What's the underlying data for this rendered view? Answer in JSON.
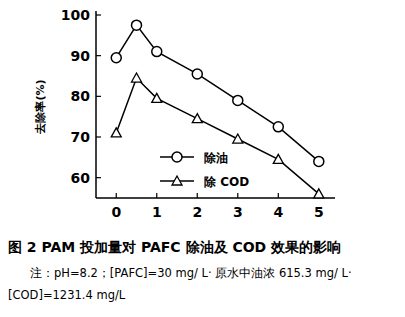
{
  "chart_data": {
    "type": "line",
    "title": "图 2  PAM 投加量对 PAFC 除油及 COD 效果的影响",
    "annotations": [
      "注：pH=8.2；[PAFC]=30 mg/ L· 原水中油浓 615.3 mg/ L·",
      "[COD]=1231.4 mg/L"
    ],
    "y_label": "去除率(%)",
    "x": [
      0,
      0.5,
      1,
      2,
      3,
      4,
      5
    ],
    "xlim": [
      -0.5,
      5.4
    ],
    "xticks": [
      0,
      1,
      2,
      3,
      4,
      5
    ],
    "ylim": [
      55,
      100
    ],
    "yticks": [
      60,
      70,
      80,
      90,
      100
    ],
    "grid": false,
    "legend": "center",
    "series": [
      {
        "name": "除油",
        "color": "#000000",
        "marker": "circle",
        "line_style": "solid",
        "values": [
          89.5,
          97.5,
          91,
          85.5,
          79,
          72.5,
          64
        ]
      },
      {
        "name": "除 COD",
        "color": "#000000",
        "marker": "triangle",
        "line_style": "solid",
        "values": [
          71,
          84.5,
          79.5,
          74.5,
          69.5,
          64.5,
          56
        ]
      }
    ]
  }
}
